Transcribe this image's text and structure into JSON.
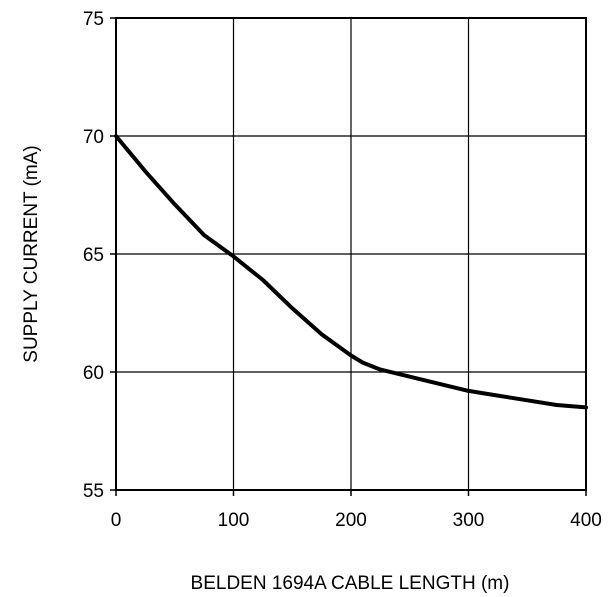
{
  "chart_data": {
    "type": "line",
    "title": "",
    "xlabel": "BELDEN 1694A CABLE LENGTH (m)",
    "ylabel": "SUPPLY CURRENT (mA)",
    "xlim": [
      0,
      400
    ],
    "ylim": [
      55,
      75
    ],
    "x_ticks": [
      0,
      100,
      200,
      300,
      400
    ],
    "y_ticks": [
      55,
      60,
      65,
      70,
      75
    ],
    "x_tick_labels": [
      "0",
      "100",
      "200",
      "300",
      "400"
    ],
    "y_tick_labels": [
      "55",
      "60",
      "65",
      "70",
      "75"
    ],
    "grid": true,
    "legend": "none",
    "series": [
      {
        "color": "#000000",
        "x": [
          0,
          25,
          50,
          75,
          100,
          125,
          150,
          175,
          200,
          210,
          225,
          250,
          275,
          300,
          325,
          350,
          375,
          400
        ],
        "y": [
          70.0,
          68.5,
          67.1,
          65.8,
          64.9,
          63.9,
          62.7,
          61.6,
          60.7,
          60.4,
          60.1,
          59.8,
          59.5,
          59.2,
          59.0,
          58.8,
          58.6,
          58.5
        ]
      }
    ]
  }
}
